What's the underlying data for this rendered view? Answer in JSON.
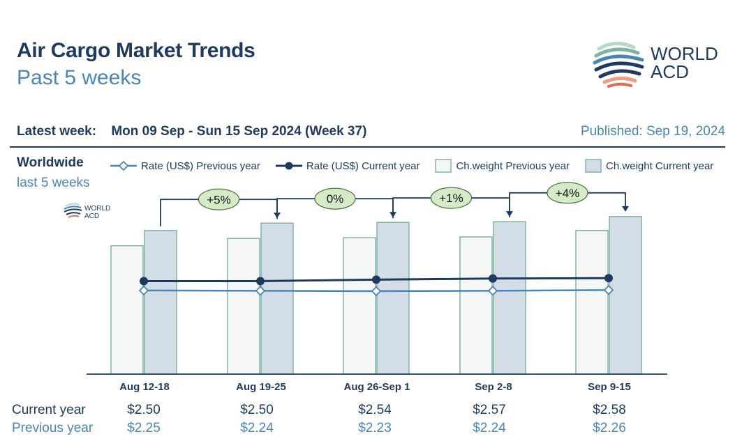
{
  "header": {
    "title": "Air Cargo Market Trends",
    "subtitle": "Past 5 weeks",
    "logo_line1": "WORLD",
    "logo_line2": "ACD",
    "latest_label": "Latest week:",
    "latest_value": "Mon 09 Sep - Sun 15 Sep 2024 (Week 37)",
    "published": "Published: Sep 19, 2024"
  },
  "region": {
    "name": "Worldwide",
    "period": "last 5 weeks"
  },
  "legend": {
    "rate_prev": "Rate (US$) Previous year",
    "rate_cur": "Rate (US$) Current year",
    "weight_prev": "Ch.weight Previous year",
    "weight_cur": "Ch.weight Current year"
  },
  "colors": {
    "navy": "#1f3a5f",
    "light_blue": "#4a86b3",
    "bar_prev_fill": "#f4f7f6",
    "bar_prev_stroke": "#7fb3a4",
    "bar_cur_fill": "#d3dde7",
    "bar_cur_stroke": "#7fb3a4",
    "bubble_fill": "#d5ebc7",
    "bubble_stroke": "#3f6e3a"
  },
  "rates_table": {
    "current_label": "Current year",
    "previous_label": "Previous year",
    "current": [
      "$2.50",
      "$2.50",
      "$2.54",
      "$2.57",
      "$2.58"
    ],
    "previous": [
      "$2.25",
      "$2.24",
      "$2.23",
      "$2.24",
      "$2.26"
    ]
  },
  "chart_data": {
    "type": "bar",
    "categories": [
      "Aug 12-18",
      "Aug 19-25",
      "Aug 26-Sep 1",
      "Sep 2-8",
      "Sep 9-15"
    ],
    "series": [
      {
        "name": "Ch.weight Previous year",
        "kind": "bar",
        "values": [
          176,
          186,
          187,
          188,
          197
        ]
      },
      {
        "name": "Ch.weight Current year",
        "kind": "bar",
        "values": [
          197,
          207,
          208,
          209,
          216
        ]
      },
      {
        "name": "Rate (US$) Current year",
        "kind": "line",
        "values": [
          2.5,
          2.5,
          2.54,
          2.57,
          2.58
        ]
      },
      {
        "name": "Rate (US$) Previous year",
        "kind": "line",
        "values": [
          2.25,
          2.24,
          2.23,
          2.24,
          2.26
        ]
      }
    ],
    "changes": [
      "+5%",
      "0%",
      "+1%",
      "+4%"
    ],
    "ylim": [
      0,
      255
    ],
    "rate_ylim": [
      0,
      5.0
    ]
  }
}
